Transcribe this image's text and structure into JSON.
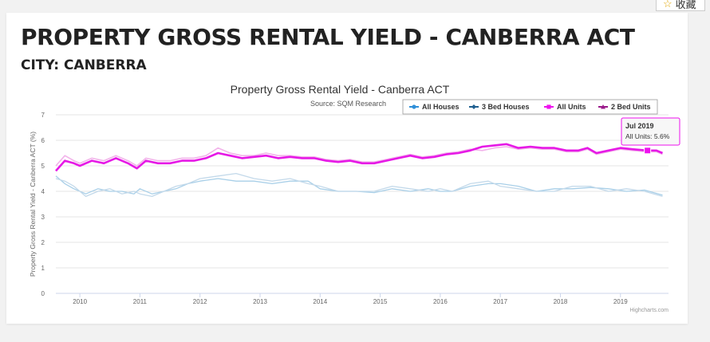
{
  "header": {
    "title": "PROPERTY GROSS RENTAL YIELD - CANBERRA ACT",
    "subtitle": "CITY: CANBERRA"
  },
  "toolbar": {
    "favorite_label": "收藏",
    "favorite_icon": "star-icon"
  },
  "colors": {
    "all_houses": "#a8cfe8",
    "three_bed_houses": "#c3d9ea",
    "all_units": "#e619e6",
    "two_bed_units": "#f2b3ea",
    "accent_magenta": "#ee11ee"
  },
  "chart_data": {
    "type": "line",
    "title": "Property Gross Rental Yield - Canberra ACT",
    "subtitle": "Source: SQM Research",
    "ylabel": "Property Gross Rental Yield - Canberra ACT (%)",
    "xlabel": "",
    "ylim": [
      0,
      7
    ],
    "yticks": [
      "0",
      "1",
      "2",
      "3",
      "4",
      "5",
      "6",
      "7"
    ],
    "xlim": [
      2009.6,
      2019.8
    ],
    "xticks": [
      "2010",
      "2011",
      "2012",
      "2013",
      "2014",
      "2015",
      "2016",
      "2017",
      "2018",
      "2019"
    ],
    "grid": true,
    "legend_position": "top-right",
    "credits": "Highcharts.com",
    "tooltip": {
      "date": "Jul 2019",
      "series": "All Units",
      "value_text": "5.6%"
    },
    "series": [
      {
        "name": "All Houses",
        "x": [
          2009.6,
          2009.75,
          2009.9,
          2010.1,
          2010.3,
          2010.5,
          2010.7,
          2010.9,
          2011.0,
          2011.2,
          2011.4,
          2011.6,
          2011.8,
          2012.0,
          2012.3,
          2012.6,
          2012.9,
          2013.2,
          2013.5,
          2013.8,
          2014.0,
          2014.3,
          2014.6,
          2014.9,
          2015.2,
          2015.5,
          2015.8,
          2016.0,
          2016.2,
          2016.5,
          2016.8,
          2017.0,
          2017.3,
          2017.6,
          2017.9,
          2018.2,
          2018.5,
          2018.8,
          2019.1,
          2019.4,
          2019.7
        ],
        "values": [
          4.6,
          4.3,
          4.1,
          3.9,
          4.1,
          4.0,
          4.0,
          3.9,
          4.1,
          3.9,
          4.0,
          4.1,
          4.3,
          4.4,
          4.5,
          4.4,
          4.4,
          4.3,
          4.4,
          4.4,
          4.1,
          4.0,
          4.0,
          3.95,
          4.1,
          4.0,
          4.1,
          4.0,
          4.0,
          4.2,
          4.3,
          4.3,
          4.2,
          4.0,
          4.1,
          4.1,
          4.15,
          4.1,
          4.0,
          4.05,
          3.85
        ]
      },
      {
        "name": "3 Bed Houses",
        "x": [
          2009.6,
          2009.75,
          2009.9,
          2010.1,
          2010.3,
          2010.5,
          2010.7,
          2010.9,
          2011.0,
          2011.2,
          2011.4,
          2011.6,
          2011.8,
          2012.0,
          2012.3,
          2012.6,
          2012.9,
          2013.2,
          2013.5,
          2013.8,
          2014.0,
          2014.3,
          2014.6,
          2014.9,
          2015.2,
          2015.5,
          2015.8,
          2016.0,
          2016.2,
          2016.5,
          2016.8,
          2017.0,
          2017.3,
          2017.6,
          2017.9,
          2018.2,
          2018.5,
          2018.8,
          2019.1,
          2019.4,
          2019.7
        ],
        "values": [
          4.5,
          4.4,
          4.2,
          3.8,
          4.0,
          4.1,
          3.9,
          4.0,
          3.9,
          3.8,
          4.0,
          4.2,
          4.3,
          4.5,
          4.6,
          4.7,
          4.5,
          4.4,
          4.5,
          4.3,
          4.2,
          4.0,
          4.0,
          4.0,
          4.2,
          4.1,
          4.0,
          4.1,
          4.0,
          4.3,
          4.4,
          4.2,
          4.1,
          4.0,
          4.0,
          4.2,
          4.2,
          4.0,
          4.1,
          4.0,
          3.8
        ]
      },
      {
        "name": "All Units",
        "x": [
          2009.6,
          2009.75,
          2009.9,
          2010.0,
          2010.2,
          2010.4,
          2010.6,
          2010.8,
          2010.95,
          2011.1,
          2011.3,
          2011.5,
          2011.7,
          2011.9,
          2012.1,
          2012.3,
          2012.5,
          2012.7,
          2012.9,
          2013.1,
          2013.3,
          2013.5,
          2013.7,
          2013.9,
          2014.1,
          2014.3,
          2014.5,
          2014.7,
          2014.9,
          2015.1,
          2015.3,
          2015.5,
          2015.7,
          2015.9,
          2016.1,
          2016.3,
          2016.5,
          2016.7,
          2016.9,
          2017.1,
          2017.3,
          2017.5,
          2017.7,
          2017.9,
          2018.1,
          2018.3,
          2018.45,
          2018.6,
          2018.8,
          2019.0,
          2019.2,
          2019.45,
          2019.6,
          2019.7
        ],
        "values": [
          4.8,
          5.2,
          5.1,
          5.0,
          5.2,
          5.1,
          5.3,
          5.1,
          4.9,
          5.2,
          5.1,
          5.1,
          5.2,
          5.2,
          5.3,
          5.5,
          5.4,
          5.3,
          5.35,
          5.4,
          5.3,
          5.35,
          5.3,
          5.3,
          5.2,
          5.15,
          5.2,
          5.1,
          5.1,
          5.2,
          5.3,
          5.4,
          5.3,
          5.35,
          5.45,
          5.5,
          5.6,
          5.75,
          5.8,
          5.85,
          5.7,
          5.75,
          5.7,
          5.7,
          5.6,
          5.6,
          5.7,
          5.5,
          5.6,
          5.7,
          5.65,
          5.6,
          5.6,
          5.5
        ]
      },
      {
        "name": "2 Bed Units",
        "x": [
          2009.6,
          2009.75,
          2009.9,
          2010.0,
          2010.2,
          2010.4,
          2010.6,
          2010.8,
          2010.95,
          2011.1,
          2011.3,
          2011.5,
          2011.7,
          2011.9,
          2012.1,
          2012.3,
          2012.5,
          2012.7,
          2012.9,
          2013.1,
          2013.3,
          2013.5,
          2013.7,
          2013.9,
          2014.1,
          2014.3,
          2014.5,
          2014.7,
          2014.9,
          2015.1,
          2015.3,
          2015.5,
          2015.7,
          2015.9,
          2016.1,
          2016.3,
          2016.5,
          2016.7,
          2016.9,
          2017.1,
          2017.3,
          2017.5,
          2017.7,
          2017.9,
          2018.1,
          2018.3,
          2018.45,
          2018.6,
          2018.8,
          2019.0,
          2019.2,
          2019.45,
          2019.6,
          2019.7
        ],
        "values": [
          5.0,
          5.4,
          5.2,
          5.1,
          5.3,
          5.2,
          5.4,
          5.2,
          5.0,
          5.3,
          5.2,
          5.2,
          5.3,
          5.3,
          5.4,
          5.7,
          5.5,
          5.4,
          5.4,
          5.5,
          5.4,
          5.4,
          5.35,
          5.35,
          5.25,
          5.2,
          5.25,
          5.15,
          5.15,
          5.25,
          5.35,
          5.45,
          5.35,
          5.4,
          5.5,
          5.55,
          5.65,
          5.6,
          5.7,
          5.75,
          5.65,
          5.7,
          5.65,
          5.65,
          5.55,
          5.55,
          5.65,
          5.45,
          5.55,
          5.65,
          5.6,
          5.55,
          5.55,
          5.45
        ]
      }
    ]
  }
}
